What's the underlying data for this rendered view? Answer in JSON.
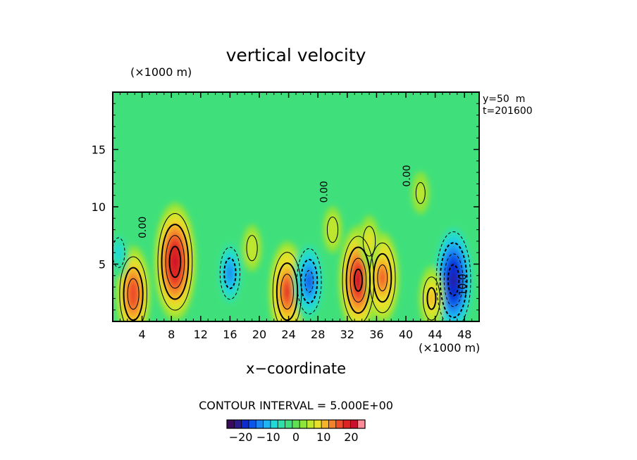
{
  "chart_data": {
    "type": "heatmap",
    "title": "vertical velocity",
    "xlabel": "x−coordinate",
    "x_unit": "(×1000 m)",
    "y_unit": "(×1000 m)",
    "info": [
      "y=50  m",
      "t=201600"
    ],
    "contour_interval_label": "CONTOUR INTERVAL = 5.000E+00",
    "xlim": [
      0,
      50
    ],
    "ylim": [
      0,
      20
    ],
    "x_ticks": [
      4,
      8,
      12,
      16,
      20,
      24,
      28,
      32,
      36,
      40,
      44,
      48
    ],
    "y_ticks": [
      5,
      10,
      15
    ],
    "contour_labels": [
      {
        "text": "0.00",
        "x": 4.5,
        "y": 8.2
      },
      {
        "text": "0.00",
        "x": 29.3,
        "y": 11.3
      },
      {
        "text": "0.00",
        "x": 40.6,
        "y": 12.7
      },
      {
        "text": "10.0",
        "x": 48.2,
        "y": 3.2
      }
    ],
    "colorbar": {
      "range": [
        -25,
        25
      ],
      "ticks": [
        -20,
        -10,
        0,
        10,
        20
      ],
      "tick_labels": [
        "−20",
        "−10",
        "0",
        "10",
        "20"
      ],
      "colors": [
        "#3c0a5c",
        "#2a1a8c",
        "#0f2bd0",
        "#0a56e8",
        "#1a86f0",
        "#1fb4f2",
        "#22d8d8",
        "#2ee0a8",
        "#3fe07c",
        "#5fe054",
        "#8ee43a",
        "#c0e62e",
        "#e8e02a",
        "#f4b428",
        "#f4822a",
        "#ee4c2a",
        "#dc2424",
        "#c8102e",
        "#ff8c9a"
      ]
    },
    "features": [
      {
        "x": 8.5,
        "y": 5.2,
        "value": 22
      },
      {
        "x": 2.8,
        "y": 2.4,
        "value": 17
      },
      {
        "x": 16.0,
        "y": 4.2,
        "value": -12
      },
      {
        "x": 23.8,
        "y": 2.6,
        "value": 18
      },
      {
        "x": 26.8,
        "y": 3.5,
        "value": -15
      },
      {
        "x": 33.5,
        "y": 3.6,
        "value": 20
      },
      {
        "x": 36.8,
        "y": 3.8,
        "value": 16
      },
      {
        "x": 46.5,
        "y": 3.6,
        "value": -22
      },
      {
        "x": 43.5,
        "y": 2.0,
        "value": 10
      },
      {
        "x": 0.8,
        "y": 6.0,
        "value": -7
      },
      {
        "x": 19.0,
        "y": 6.4,
        "value": 6
      },
      {
        "x": 30.0,
        "y": 8.0,
        "value": 6
      },
      {
        "x": 42.0,
        "y": 11.2,
        "value": 5
      },
      {
        "x": 35.0,
        "y": 7.0,
        "value": 7
      }
    ]
  }
}
